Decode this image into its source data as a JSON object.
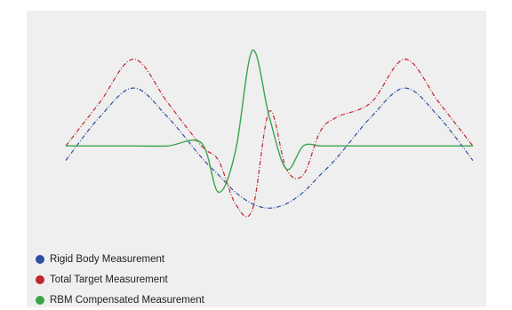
{
  "chart_data": {
    "type": "line",
    "x": [
      -6,
      -5,
      -4,
      -3,
      -2,
      -1.5,
      -1,
      -0.5,
      0,
      0.5,
      1,
      1.5,
      2,
      3,
      4,
      5,
      6
    ],
    "series": [
      {
        "name": "Rigid Body Measurement",
        "color": "#2f4fa3",
        "style": "dash-dot",
        "values": [
          -0.5,
          1.0,
          2.0,
          1.0,
          -0.4,
          -1.0,
          -1.6,
          -2.0,
          -2.15,
          -2.0,
          -1.6,
          -1.0,
          -0.4,
          1.0,
          2.0,
          1.0,
          -0.5
        ]
      },
      {
        "name": "Total Target Measurement",
        "color": "#c0262d",
        "style": "dash-dot",
        "values": [
          0,
          1.5,
          3.0,
          1.5,
          0,
          -0.5,
          -2.0,
          -2.2,
          1.2,
          -0.8,
          -1.0,
          0.5,
          1.0,
          1.5,
          3.0,
          1.5,
          0
        ]
      },
      {
        "name": "RBM Compensated Measurement",
        "color": "#3aa54b",
        "style": "solid",
        "values": [
          0,
          0,
          0,
          0,
          0.1,
          -1.6,
          -0.2,
          3.3,
          1.0,
          -0.8,
          0,
          0,
          0,
          0,
          0,
          0,
          0
        ]
      }
    ],
    "ylim": [
      -3,
      4
    ],
    "grid": false,
    "legend_position": "bottom-left"
  }
}
